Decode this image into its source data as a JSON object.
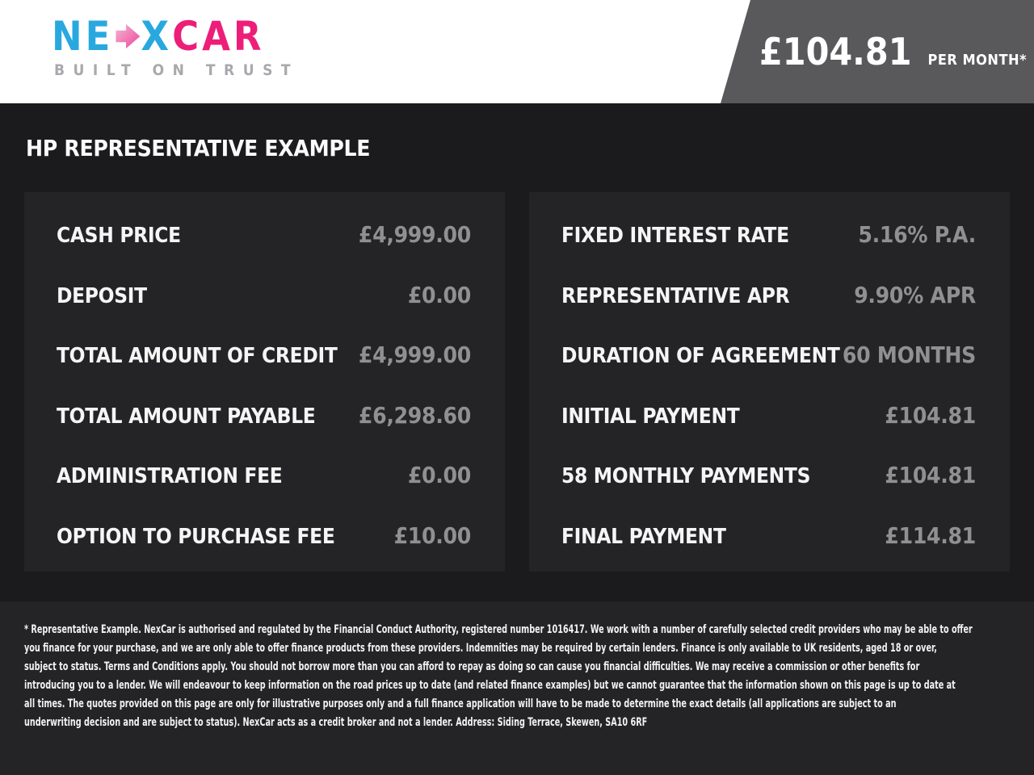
{
  "header": {
    "logo": {
      "text_ne": "NE",
      "text_x": "X",
      "text_car": "CAR",
      "tagline": "BUILT ON TRUST",
      "arrow_icon": "right-arrow",
      "colors": {
        "blue": "#29a8e0",
        "pink": "#ed1e79",
        "tagline_gray": "#a7a9ac"
      }
    },
    "price_banner": {
      "amount": "£104.81",
      "period": "PER MONTH*",
      "background": "#59595b"
    }
  },
  "page_title": "HP REPRESENTATIVE EXAMPLE",
  "panels": {
    "left": {
      "rows": [
        {
          "label": "CASH PRICE",
          "value": "£4,999.00"
        },
        {
          "label": "DEPOSIT",
          "value": "£0.00"
        },
        {
          "label": "TOTAL AMOUNT OF CREDIT",
          "value": "£4,999.00"
        },
        {
          "label": "TOTAL AMOUNT PAYABLE",
          "value": "£6,298.60"
        },
        {
          "label": "ADMINISTRATION FEE",
          "value": "£0.00"
        },
        {
          "label": "OPTION TO PURCHASE FEE",
          "value": "£10.00"
        }
      ]
    },
    "right": {
      "rows": [
        {
          "label": "FIXED INTEREST RATE",
          "value": "5.16% P.A."
        },
        {
          "label": "REPRESENTATIVE APR",
          "value": "9.90% APR"
        },
        {
          "label": "DURATION OF AGREEMENT",
          "value": "60 MONTHS"
        },
        {
          "label": "INITIAL PAYMENT",
          "value": "£104.81"
        },
        {
          "label": "58 MONTHLY PAYMENTS",
          "value": "£104.81"
        },
        {
          "label": "FINAL PAYMENT",
          "value": "£114.81"
        }
      ]
    }
  },
  "footer": {
    "lines": [
      "* Representative Example. NexCar is authorised and regulated by the Financial Conduct Authority, registered number 1016417. We work with a number of carefully selected credit providers who may be able to offer",
      "you finance for your purchase, and we are only able to offer finance products from these providers. Indemnities may be required by certain lenders. Finance is only available to UK residents, aged 18 or over,",
      "subject to status. Terms and Conditions apply. You should not borrow more than you can afford to repay as doing so can cause you financial difficulties. We may receive a commission or other benefits for",
      "introducing you to a lender. We will endeavour to keep information on the road prices up to date (and related finance examples) but we cannot guarantee that the information shown on this page is up to date at",
      "all times. The quotes provided on this page are only for illustrative purposes only and a full finance application will have to be made to determine the exact details (all applications are subject to an",
      "underwriting decision and are subject to status). NexCar acts as a credit broker and not a lender. Address: Siding Terrace, Skewen, SA10 6RF"
    ]
  },
  "colors": {
    "page_background": "#1b1b1d",
    "panel_background": "#242427",
    "footer_background": "#242427",
    "value_text": "#909092",
    "label_text": "#f5f5f5",
    "banner_gray": "#59595b"
  }
}
